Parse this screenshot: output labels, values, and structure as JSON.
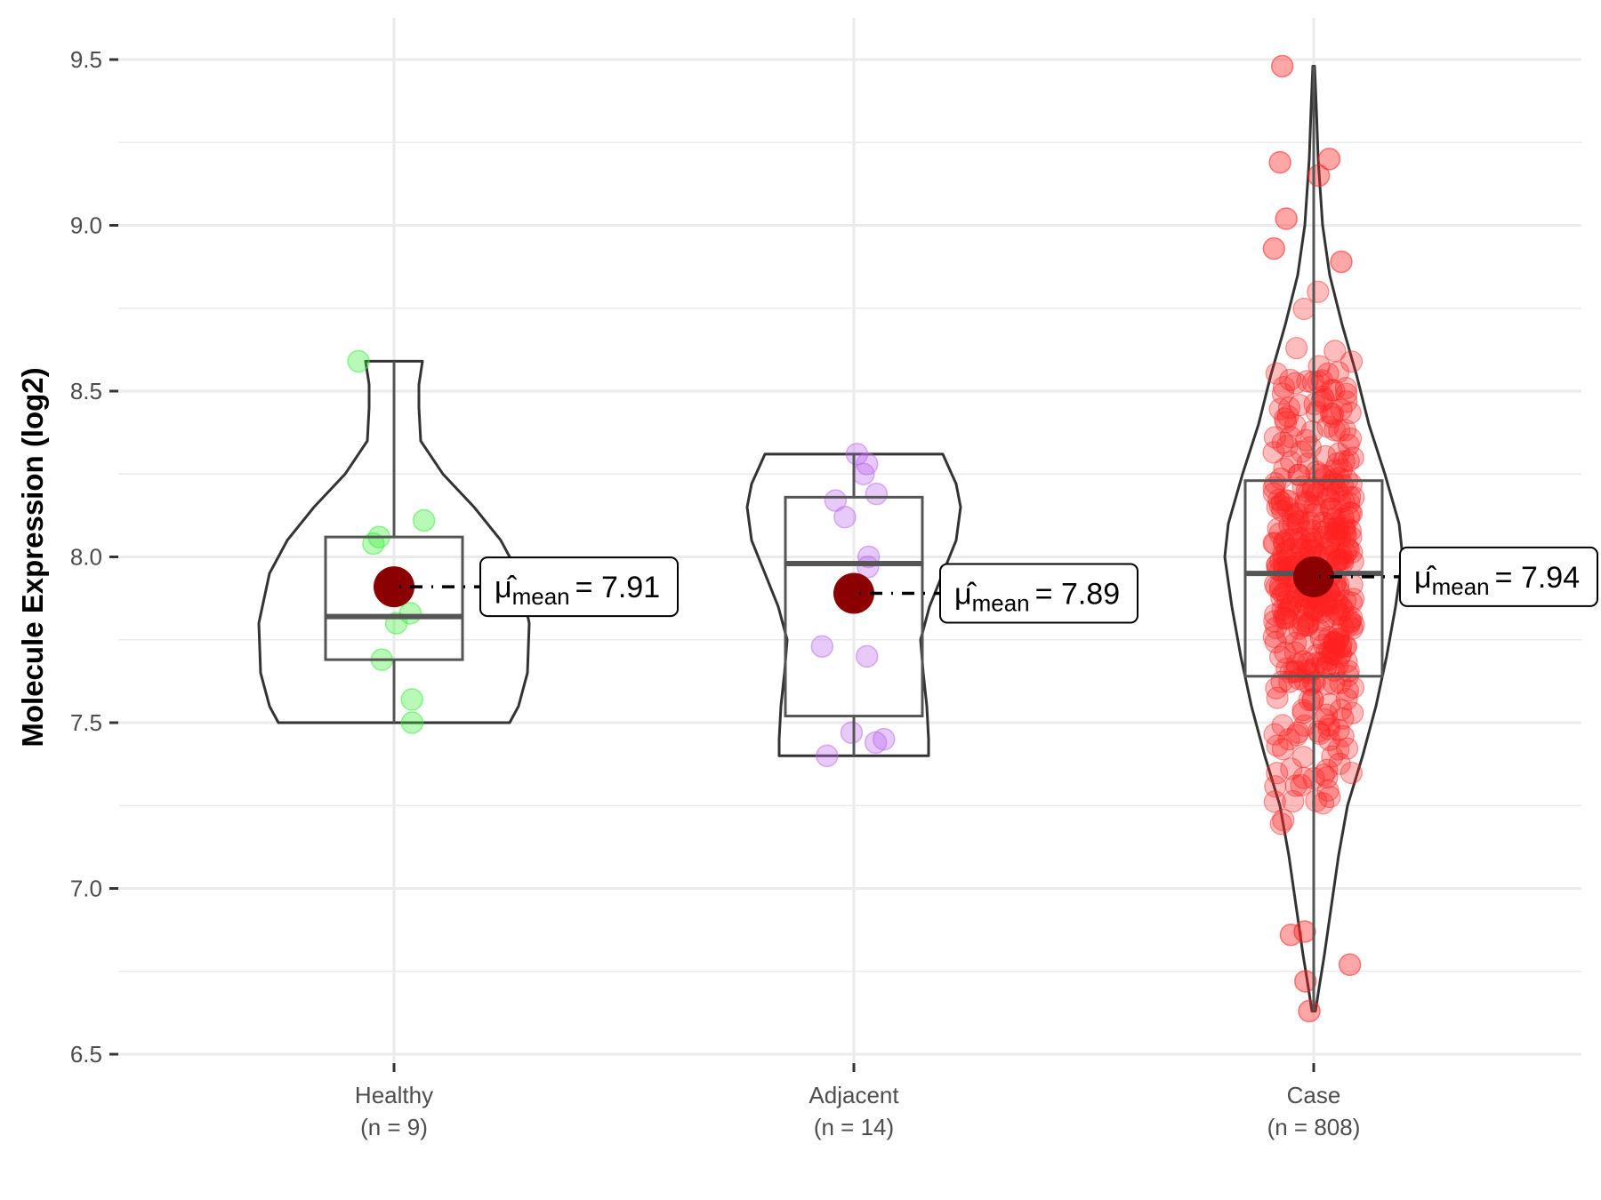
{
  "chart_data": {
    "type": "violin-box-jitter",
    "title": "",
    "xlabel": "",
    "ylabel": "Molecule Expression (log2)",
    "ylim": [
      6.45,
      9.6
    ],
    "yticks": [
      6.5,
      7.0,
      7.5,
      8.0,
      8.5,
      9.0,
      9.5
    ],
    "ytick_labels": [
      "6.5",
      "7.0",
      "7.5",
      "8.0",
      "8.5",
      "9.0",
      "9.5"
    ],
    "grid": true,
    "legend": "none",
    "categories": [
      {
        "name": "Healthy",
        "n_label": "(n = 9)",
        "color": "#33ee33"
      },
      {
        "name": "Adjacent",
        "n_label": "(n = 14)",
        "color": "#bb66ee"
      },
      {
        "name": "Case",
        "n_label": "(n = 808)",
        "color": "#ff2222"
      }
    ],
    "box_stats": [
      {
        "group": "Healthy",
        "min": 7.5,
        "q1": 7.69,
        "median": 7.82,
        "q3": 8.06,
        "max": 8.59,
        "mean": 7.91
      },
      {
        "group": "Adjacent",
        "min": 7.4,
        "q1": 7.52,
        "median": 7.98,
        "q3": 8.18,
        "max": 8.31,
        "mean": 7.89
      },
      {
        "group": "Case",
        "min": 6.63,
        "q1": 7.64,
        "median": 7.95,
        "q3": 8.23,
        "max": 9.48,
        "mean": 7.94
      }
    ],
    "mean_labels": [
      {
        "group": "Healthy",
        "symbol": "μ̂",
        "subscript": "mean",
        "text": "= 7.91"
      },
      {
        "group": "Adjacent",
        "symbol": "μ̂",
        "subscript": "mean",
        "text": "= 7.89"
      },
      {
        "group": "Case",
        "symbol": "μ̂",
        "subscript": "mean",
        "text": "= 7.94"
      }
    ],
    "points": {
      "Healthy": [
        8.59,
        8.11,
        8.06,
        8.04,
        7.83,
        7.8,
        7.69,
        7.57,
        7.5
      ],
      "Adjacent": [
        8.31,
        8.28,
        8.25,
        8.19,
        8.17,
        8.12,
        8.0,
        7.97,
        7.73,
        7.7,
        7.47,
        7.45,
        7.44,
        7.4
      ],
      "Case_extremes": [
        9.48,
        9.2,
        9.19,
        9.15,
        9.02,
        8.93,
        8.89,
        6.87,
        6.86,
        6.77,
        6.72,
        6.63
      ]
    },
    "mean_point_color": "#8b0000"
  }
}
